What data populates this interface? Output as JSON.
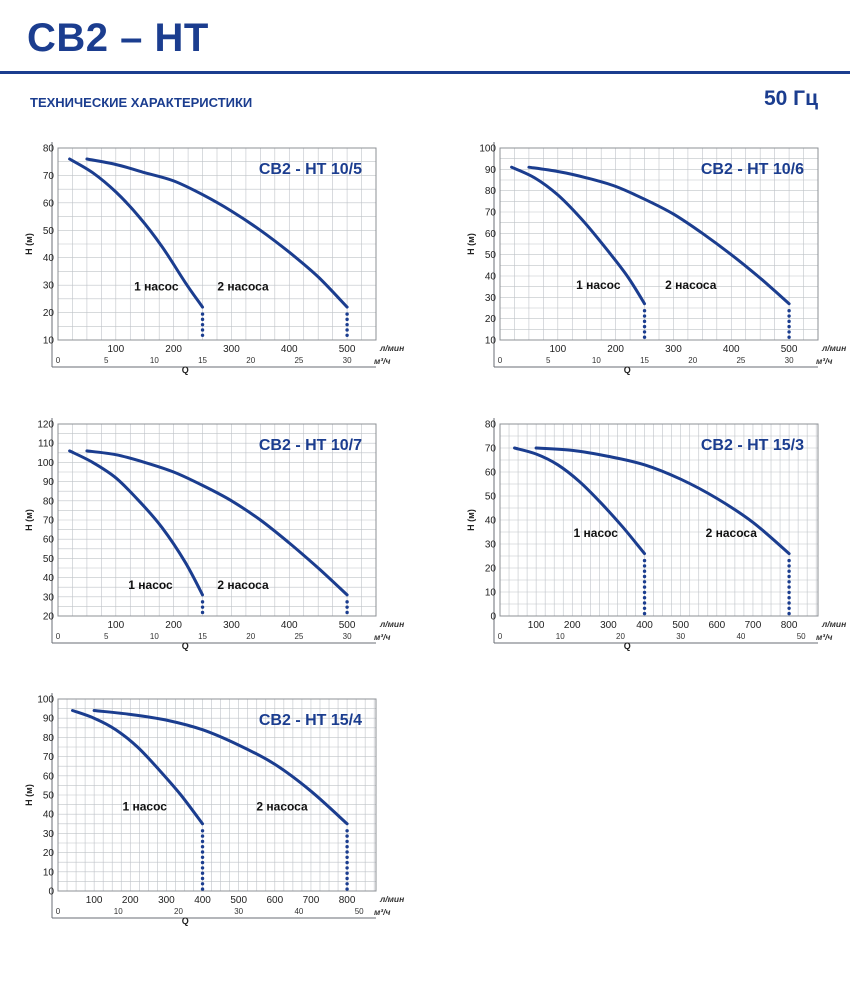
{
  "header": {
    "title": "CB2 – HT",
    "section": "ТЕХНИЧЕСКИЕ ХАРАКТЕРИСТИКИ",
    "frequency": "50 Гц",
    "accent_color": "#1b3d8f"
  },
  "chart_data": [
    {
      "type": "line",
      "title": "CB2 - HT 10/5",
      "ylabel": "H (м)",
      "xlabel": "Q",
      "x_unit_primary": "л/мин",
      "x_unit_secondary": "м³/ч",
      "xlim": [
        0,
        550
      ],
      "ylim": [
        10,
        80
      ],
      "x_ticks": [
        100,
        200,
        300,
        400,
        500
      ],
      "y_ticks": [
        10,
        20,
        30,
        40,
        50,
        60,
        70,
        80
      ],
      "x2_ticks": [
        "0",
        "5",
        "10",
        "15",
        "20",
        "25",
        "30"
      ],
      "x2_per_unit": 16.667,
      "grid": true,
      "series": [
        {
          "name": "1 насос",
          "x": [
            20,
            60,
            100,
            140,
            180,
            220,
            250
          ],
          "y": [
            76,
            71,
            64,
            55,
            44,
            31,
            22
          ]
        },
        {
          "name": "2 насоса",
          "x": [
            50,
            100,
            150,
            200,
            250,
            300,
            350,
            400,
            450,
            500
          ],
          "y": [
            76,
            74,
            71,
            68,
            63,
            57,
            50,
            42,
            33,
            22
          ]
        }
      ],
      "max_flow_markers": [
        250,
        500
      ],
      "label_x": [
        170,
        320
      ],
      "label_y": 28
    },
    {
      "type": "line",
      "title": "CB2 - HT 10/6",
      "ylabel": "H (м)",
      "xlabel": "Q",
      "x_unit_primary": "л/мин",
      "x_unit_secondary": "м³/ч",
      "xlim": [
        0,
        550
      ],
      "ylim": [
        10,
        100
      ],
      "x_ticks": [
        100,
        200,
        300,
        400,
        500
      ],
      "y_ticks": [
        10,
        20,
        30,
        40,
        50,
        60,
        70,
        80,
        90,
        100
      ],
      "x2_ticks": [
        "0",
        "5",
        "10",
        "15",
        "20",
        "25",
        "30"
      ],
      "x2_per_unit": 16.667,
      "grid": true,
      "series": [
        {
          "name": "1 насос",
          "x": [
            20,
            60,
            100,
            140,
            180,
            220,
            250
          ],
          "y": [
            91,
            86,
            78,
            67,
            54,
            40,
            27
          ]
        },
        {
          "name": "2 насоса",
          "x": [
            50,
            100,
            150,
            200,
            250,
            300,
            350,
            400,
            450,
            500
          ],
          "y": [
            91,
            89,
            86,
            82,
            76,
            69,
            60,
            50,
            39,
            27
          ]
        }
      ],
      "max_flow_markers": [
        250,
        500
      ],
      "label_x": [
        170,
        330
      ],
      "label_y": 34
    },
    {
      "type": "line",
      "title": "CB2 - HT 10/7",
      "ylabel": "H (м)",
      "xlabel": "Q",
      "x_unit_primary": "л/мин",
      "x_unit_secondary": "м³/ч",
      "xlim": [
        0,
        550
      ],
      "ylim": [
        20,
        120
      ],
      "x_ticks": [
        100,
        200,
        300,
        400,
        500
      ],
      "y_ticks": [
        20,
        30,
        40,
        50,
        60,
        70,
        80,
        90,
        100,
        110,
        120
      ],
      "x2_ticks": [
        "0",
        "5",
        "10",
        "15",
        "20",
        "25",
        "30"
      ],
      "x2_per_unit": 16.667,
      "grid": true,
      "series": [
        {
          "name": "1  насос",
          "x": [
            20,
            60,
            100,
            140,
            180,
            220,
            250
          ],
          "y": [
            106,
            100,
            92,
            80,
            66,
            48,
            31
          ]
        },
        {
          "name": "2 насоса",
          "x": [
            50,
            100,
            150,
            200,
            250,
            300,
            350,
            400,
            450,
            500
          ],
          "y": [
            106,
            104,
            100,
            95,
            88,
            80,
            70,
            58,
            45,
            31
          ]
        }
      ],
      "max_flow_markers": [
        250,
        500
      ],
      "label_x": [
        160,
        320
      ],
      "label_y": 34
    },
    {
      "type": "line",
      "title": "CB2 - HT 15/3",
      "ylabel": "H (м)",
      "xlabel": "Q",
      "x_unit_primary": "л/мин",
      "x_unit_secondary": "м³/ч",
      "xlim": [
        0,
        880
      ],
      "ylim": [
        0,
        80
      ],
      "x_ticks": [
        100,
        200,
        300,
        400,
        500,
        600,
        700,
        800
      ],
      "y_ticks": [
        0,
        10,
        20,
        30,
        40,
        50,
        60,
        70,
        80
      ],
      "x2_ticks": [
        "0",
        "10",
        "20",
        "30",
        "40",
        "50"
      ],
      "x2_per_unit": 16.667,
      "grid": true,
      "series": [
        {
          "name": "1 насос",
          "x": [
            40,
            100,
            160,
            220,
            280,
            340,
            400
          ],
          "y": [
            70,
            67.5,
            63,
            56,
            47,
            37,
            26
          ]
        },
        {
          "name": "2 насоса",
          "x": [
            100,
            200,
            300,
            400,
            500,
            600,
            700,
            800
          ],
          "y": [
            70,
            69,
            66.5,
            63,
            57,
            49,
            39,
            26
          ]
        }
      ],
      "max_flow_markers": [
        400,
        800
      ],
      "label_x": [
        265,
        640
      ],
      "label_y": 33
    },
    {
      "type": "line",
      "title": "CB2 - HT 15/4",
      "ylabel": "H (м)",
      "xlabel": "Q",
      "x_unit_primary": "л/мин",
      "x_unit_secondary": "м³/ч",
      "xlim": [
        0,
        880
      ],
      "ylim": [
        0,
        100
      ],
      "x_ticks": [
        100,
        200,
        300,
        400,
        500,
        600,
        700,
        800
      ],
      "y_ticks": [
        0,
        10,
        20,
        30,
        40,
        50,
        60,
        70,
        80,
        90,
        100
      ],
      "x2_ticks": [
        "0",
        "10",
        "20",
        "30",
        "40",
        "50"
      ],
      "x2_per_unit": 16.667,
      "grid": true,
      "series": [
        {
          "name": "1 насос",
          "x": [
            40,
            100,
            160,
            220,
            280,
            340,
            400
          ],
          "y": [
            94,
            90,
            84,
            75,
            63,
            50,
            35
          ]
        },
        {
          "name": "2 насоса",
          "x": [
            100,
            200,
            300,
            400,
            500,
            600,
            700,
            800
          ],
          "y": [
            94,
            92,
            89,
            84,
            76,
            66,
            52,
            35
          ]
        }
      ],
      "max_flow_markers": [
        400,
        800
      ],
      "label_x": [
        240,
        620
      ],
      "label_y": 42
    }
  ]
}
